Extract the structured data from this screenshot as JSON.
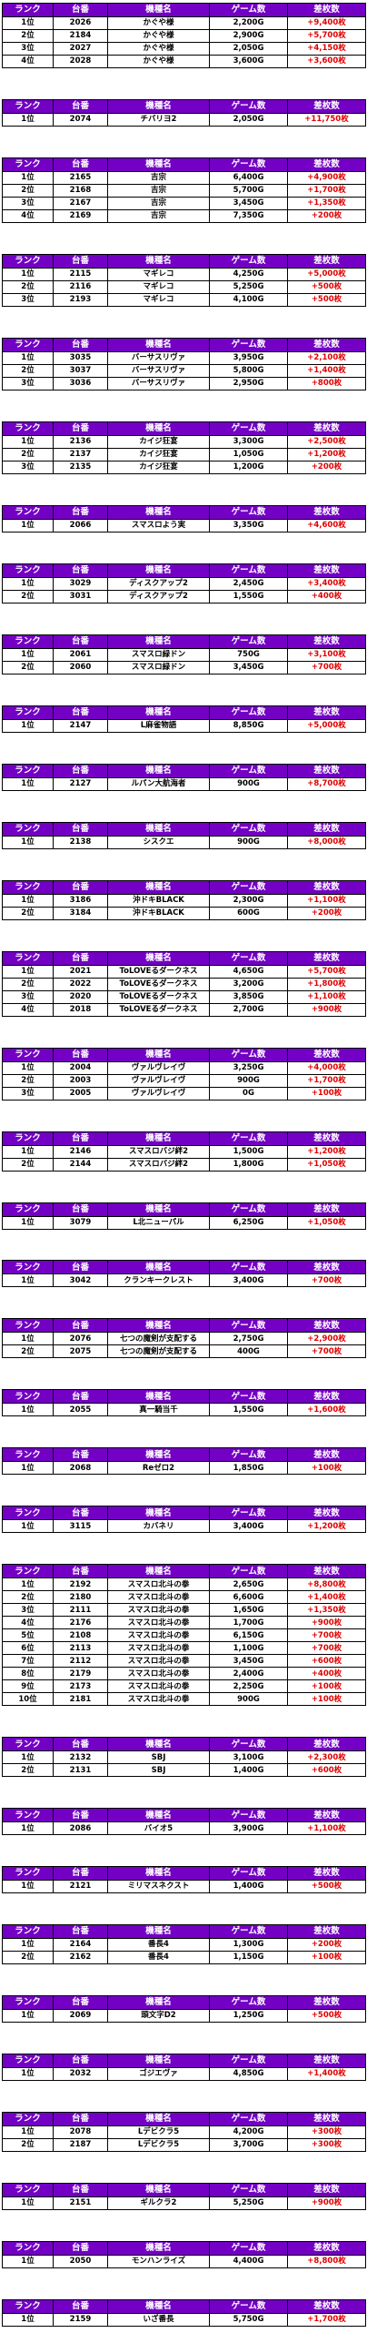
{
  "headers": [
    "ランク",
    "台番",
    "機種名",
    "ゲーム数",
    "差枚数"
  ],
  "groups": [
    {
      "rows": [
        [
          "1位",
          "2026",
          "かぐや様",
          "2,200G",
          "+9,400枚"
        ],
        [
          "2位",
          "2184",
          "かぐや様",
          "2,900G",
          "+5,700枚"
        ],
        [
          "3位",
          "2027",
          "かぐや様",
          "2,050G",
          "+4,150枚"
        ],
        [
          "4位",
          "2028",
          "かぐや様",
          "3,600G",
          "+3,600枚"
        ]
      ]
    },
    {
      "rows": [
        [
          "1位",
          "2074",
          "チバリヨ2",
          "2,050G",
          "+11,750枚"
        ]
      ]
    },
    {
      "rows": [
        [
          "1位",
          "2165",
          "吉宗",
          "6,400G",
          "+4,900枚"
        ],
        [
          "2位",
          "2168",
          "吉宗",
          "5,700G",
          "+1,700枚"
        ],
        [
          "3位",
          "2167",
          "吉宗",
          "3,450G",
          "+1,350枚"
        ],
        [
          "4位",
          "2169",
          "吉宗",
          "7,350G",
          "+200枚"
        ]
      ]
    },
    {
      "rows": [
        [
          "1位",
          "2115",
          "マギレコ",
          "4,250G",
          "+5,000枚"
        ],
        [
          "2位",
          "2116",
          "マギレコ",
          "5,250G",
          "+500枚"
        ],
        [
          "3位",
          "2193",
          "マギレコ",
          "4,100G",
          "+500枚"
        ]
      ]
    },
    {
      "rows": [
        [
          "1位",
          "3035",
          "バーサスリヴァ",
          "3,950G",
          "+2,100枚"
        ],
        [
          "2位",
          "3037",
          "バーサスリヴァ",
          "5,800G",
          "+1,400枚"
        ],
        [
          "3位",
          "3036",
          "バーサスリヴァ",
          "2,950G",
          "+800枚"
        ]
      ]
    },
    {
      "rows": [
        [
          "1位",
          "2136",
          "カイジ狂宴",
          "3,300G",
          "+2,500枚"
        ],
        [
          "2位",
          "2137",
          "カイジ狂宴",
          "1,050G",
          "+1,200枚"
        ],
        [
          "3位",
          "2135",
          "カイジ狂宴",
          "1,200G",
          "+200枚"
        ]
      ]
    },
    {
      "rows": [
        [
          "1位",
          "2066",
          "スマスロよう実",
          "3,350G",
          "+4,600枚"
        ]
      ]
    },
    {
      "rows": [
        [
          "1位",
          "3029",
          "ディスクアップ2",
          "2,450G",
          "+3,400枚"
        ],
        [
          "2位",
          "3031",
          "ディスクアップ2",
          "1,550G",
          "+400枚"
        ]
      ]
    },
    {
      "rows": [
        [
          "1位",
          "2061",
          "スマスロ緑ドン",
          "750G",
          "+3,100枚"
        ],
        [
          "2位",
          "2060",
          "スマスロ緑ドン",
          "3,450G",
          "+700枚"
        ]
      ]
    },
    {
      "rows": [
        [
          "1位",
          "2147",
          "L麻雀物語",
          "8,850G",
          "+5,000枚"
        ]
      ]
    },
    {
      "rows": [
        [
          "1位",
          "2127",
          "ルパン大航海者",
          "900G",
          "+8,700枚"
        ]
      ]
    },
    {
      "rows": [
        [
          "1位",
          "2138",
          "シスクエ",
          "900G",
          "+8,000枚"
        ]
      ]
    },
    {
      "rows": [
        [
          "1位",
          "3186",
          "沖ドキBLACK",
          "2,300G",
          "+1,100枚"
        ],
        [
          "2位",
          "3184",
          "沖ドキBLACK",
          "600G",
          "+200枚"
        ]
      ]
    },
    {
      "rows": [
        [
          "1位",
          "2021",
          "ToLOVEるダークネス",
          "4,650G",
          "+5,700枚"
        ],
        [
          "2位",
          "2022",
          "ToLOVEるダークネス",
          "3,200G",
          "+1,800枚"
        ],
        [
          "3位",
          "2020",
          "ToLOVEるダークネス",
          "3,850G",
          "+1,100枚"
        ],
        [
          "4位",
          "2018",
          "ToLOVEるダークネス",
          "2,700G",
          "+900枚"
        ]
      ]
    },
    {
      "rows": [
        [
          "1位",
          "2004",
          "ヴァルヴレイヴ",
          "3,250G",
          "+4,000枚"
        ],
        [
          "2位",
          "2003",
          "ヴァルヴレイヴ",
          "900G",
          "+1,700枚"
        ],
        [
          "3位",
          "2005",
          "ヴァルヴレイヴ",
          "0G",
          "+100枚"
        ]
      ]
    },
    {
      "rows": [
        [
          "1位",
          "2146",
          "スマスロバジ絆2",
          "1,500G",
          "+1,200枚"
        ],
        [
          "2位",
          "2144",
          "スマスロバジ絆2",
          "1,800G",
          "+1,050枚"
        ]
      ]
    },
    {
      "rows": [
        [
          "1位",
          "3079",
          "L北ニューパル",
          "6,250G",
          "+1,050枚"
        ]
      ]
    },
    {
      "rows": [
        [
          "1位",
          "3042",
          "クランキークレスト",
          "3,400G",
          "+700枚"
        ]
      ]
    },
    {
      "rows": [
        [
          "1位",
          "2076",
          "七つの魔剣が支配する",
          "2,750G",
          "+2,900枚"
        ],
        [
          "2位",
          "2075",
          "七つの魔剣が支配する",
          "400G",
          "+700枚"
        ]
      ]
    },
    {
      "rows": [
        [
          "1位",
          "2055",
          "真一騎当千",
          "1,550G",
          "+1,600枚"
        ]
      ]
    },
    {
      "rows": [
        [
          "1位",
          "2068",
          "Reゼロ2",
          "1,850G",
          "+100枚"
        ]
      ]
    },
    {
      "rows": [
        [
          "1位",
          "3115",
          "カバネリ",
          "3,400G",
          "+1,200枚"
        ]
      ]
    },
    {
      "rows": [
        [
          "1位",
          "2192",
          "スマスロ北斗の拳",
          "2,650G",
          "+8,800枚"
        ],
        [
          "2位",
          "2180",
          "スマスロ北斗の拳",
          "6,600G",
          "+1,400枚"
        ],
        [
          "3位",
          "2111",
          "スマスロ北斗の拳",
          "1,650G",
          "+1,350枚"
        ],
        [
          "4位",
          "2176",
          "スマスロ北斗の拳",
          "1,700G",
          "+900枚"
        ],
        [
          "5位",
          "2108",
          "スマスロ北斗の拳",
          "6,150G",
          "+700枚"
        ],
        [
          "6位",
          "2113",
          "スマスロ北斗の拳",
          "1,100G",
          "+700枚"
        ],
        [
          "7位",
          "2112",
          "スマスロ北斗の拳",
          "3,450G",
          "+600枚"
        ],
        [
          "8位",
          "2179",
          "スマスロ北斗の拳",
          "2,400G",
          "+400枚"
        ],
        [
          "9位",
          "2173",
          "スマスロ北斗の拳",
          "2,250G",
          "+100枚"
        ],
        [
          "10位",
          "2181",
          "スマスロ北斗の拳",
          "900G",
          "+100枚"
        ]
      ]
    },
    {
      "rows": [
        [
          "1位",
          "2132",
          "SBJ",
          "3,100G",
          "+2,300枚"
        ],
        [
          "2位",
          "2131",
          "SBJ",
          "1,400G",
          "+600枚"
        ]
      ]
    },
    {
      "rows": [
        [
          "1位",
          "2086",
          "バイオ5",
          "3,900G",
          "+1,100枚"
        ]
      ]
    },
    {
      "rows": [
        [
          "1位",
          "2121",
          "ミリマスネクスト",
          "1,400G",
          "+500枚"
        ]
      ]
    },
    {
      "rows": [
        [
          "1位",
          "2164",
          "番長4",
          "1,300G",
          "+200枚"
        ],
        [
          "2位",
          "2162",
          "番長4",
          "1,150G",
          "+100枚"
        ]
      ]
    },
    {
      "rows": [
        [
          "1位",
          "2069",
          "頭文字D2",
          "1,250G",
          "+500枚"
        ]
      ]
    },
    {
      "rows": [
        [
          "1位",
          "2032",
          "ゴジエヴァ",
          "4,850G",
          "+1,400枚"
        ]
      ]
    },
    {
      "rows": [
        [
          "1位",
          "2078",
          "Lデビクラ5",
          "4,200G",
          "+300枚"
        ],
        [
          "2位",
          "2187",
          "Lデビクラ5",
          "3,700G",
          "+300枚"
        ]
      ]
    },
    {
      "rows": [
        [
          "1位",
          "2151",
          "ギルクラ2",
          "5,250G",
          "+900枚"
        ]
      ]
    },
    {
      "rows": [
        [
          "1位",
          "2050",
          "モンハンライズ",
          "4,400G",
          "+8,800枚"
        ]
      ]
    },
    {
      "rows": [
        [
          "1位",
          "2159",
          "いざ番長",
          "5,750G",
          "+1,700枚"
        ]
      ]
    }
  ]
}
